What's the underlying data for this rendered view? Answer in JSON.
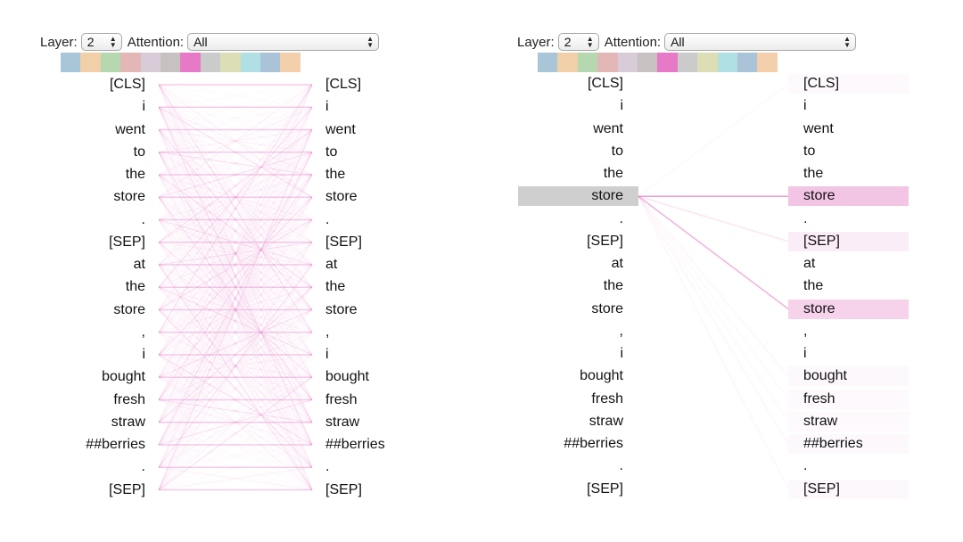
{
  "panels": [
    {
      "layer_label": "Layer:",
      "layer_value": "2",
      "attention_label": "Attention:",
      "attention_value": "All"
    },
    {
      "layer_label": "Layer:",
      "layer_value": "2",
      "attention_label": "Attention:",
      "attention_value": "All",
      "selected_token_index": 5
    }
  ],
  "head_colors": [
    "#a9c5d8",
    "#f1cfa8",
    "#b5d8b0",
    "#e4b7b7",
    "#d7ccd8",
    "#c8c1c1",
    "#e77ac6",
    "#cbcbcb",
    "#dcdeb5",
    "#b0e0e4",
    "#aac3d9",
    "#f3cfac"
  ],
  "tokens": [
    "[CLS]",
    "i",
    "went",
    "to",
    "the",
    "store",
    ".",
    "[SEP]",
    "at",
    "the",
    "store",
    ",",
    "i",
    "bought",
    "fresh",
    "straw",
    "##berries",
    ".",
    "[SEP]"
  ],
  "attention_color": "#e377c2",
  "selected_highlight_color": "#cfcfcf",
  "right_target_weights": [
    0.03,
    0,
    0,
    0,
    0,
    0.45,
    0,
    0.12,
    0,
    0,
    0.35,
    0,
    0,
    0.04,
    0.03,
    0.03,
    0.04,
    0,
    0.04
  ]
}
